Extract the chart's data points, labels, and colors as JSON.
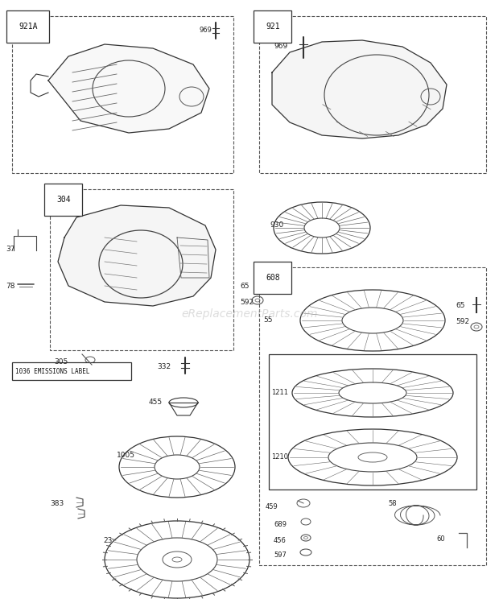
{
  "bg_color": "#ffffff",
  "watermark": "eReplacementParts.com",
  "line_color": "#333333",
  "dim": [
    620,
    744
  ]
}
